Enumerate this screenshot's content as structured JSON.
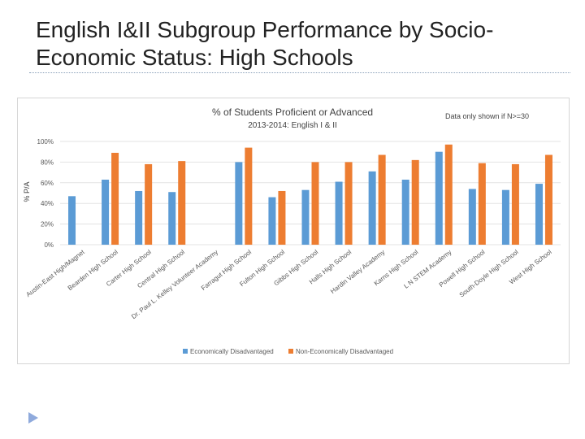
{
  "slide": {
    "title": "English I&II Subgroup Performance by Socio-Economic Status:  High Schools",
    "note": "Data only shown if N>=30"
  },
  "chart_data": {
    "type": "bar",
    "title": "% of Students Proficient or Advanced",
    "subtitle": "2013-2014:  English I & II",
    "ylabel": "% P/A",
    "xlabel": "",
    "ylim": [
      0,
      100
    ],
    "yticks": [
      "0%",
      "20%",
      "40%",
      "60%",
      "80%",
      "100%"
    ],
    "grid": true,
    "legend_position": "bottom",
    "categories": [
      "Austin-East High/Magnet",
      "Bearden High School",
      "Carter High School",
      "Central High School",
      "Dr. Paul L. Kelley Volunteer Academy",
      "Farragut High School",
      "Fulton High School",
      "Gibbs High School",
      "Halls High School",
      "Hardin Valley Academy",
      "Karns High School",
      "L N STEM Academy",
      "Powell High School",
      "South-Doyle High School",
      "West High School"
    ],
    "series": [
      {
        "name": "Economically Disadvantaged",
        "color": "#5b9bd5",
        "values": [
          47,
          63,
          52,
          51,
          null,
          80,
          46,
          53,
          61,
          71,
          63,
          90,
          54,
          53,
          59
        ]
      },
      {
        "name": "Non-Economically Disadvantaged",
        "color": "#ed7d31",
        "values": [
          null,
          89,
          78,
          81,
          null,
          94,
          52,
          80,
          80,
          87,
          82,
          97,
          79,
          78,
          87
        ]
      }
    ]
  }
}
